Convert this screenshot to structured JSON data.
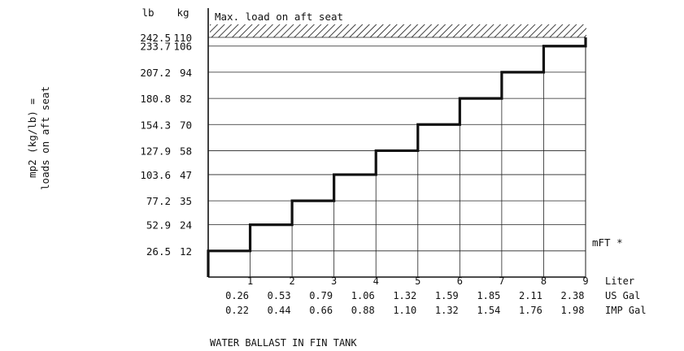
{
  "chart_data": {
    "type": "step",
    "title": "",
    "max_load_label": "Max. load on aft seat",
    "ylabel_line1": "mp2 (kg/lb) =",
    "ylabel_line2": "loads on aft seat",
    "unit_lb": "lb",
    "unit_kg": "kg",
    "y_ticks": [
      {
        "lb": "26.5",
        "kg": "12",
        "value": 12
      },
      {
        "lb": "52.9",
        "kg": "24",
        "value": 24
      },
      {
        "lb": "77.2",
        "kg": "35",
        "value": 35
      },
      {
        "lb": "103.6",
        "kg": "47",
        "value": 47
      },
      {
        "lb": "127.9",
        "kg": "58",
        "value": 58
      },
      {
        "lb": "154.3",
        "kg": "70",
        "value": 70
      },
      {
        "lb": "180.8",
        "kg": "82",
        "value": 82
      },
      {
        "lb": "207.2",
        "kg": "94",
        "value": 94
      },
      {
        "lb": "233.7",
        "kg": "106",
        "value": 106
      },
      {
        "lb": "242.5",
        "kg": "110",
        "value": 110
      }
    ],
    "x_liter": [
      "1",
      "2",
      "3",
      "4",
      "5",
      "6",
      "7",
      "8",
      "9"
    ],
    "x_usgal": [
      "0.26",
      "0.53",
      "0.79",
      "1.06",
      "1.32",
      "1.59",
      "1.85",
      "2.11",
      "2.38"
    ],
    "x_impgal": [
      "0.22",
      "0.44",
      "0.66",
      "0.88",
      "1.10",
      "1.32",
      "1.54",
      "1.76",
      "1.98"
    ],
    "unit_liter": "Liter",
    "unit_usgal": "US Gal",
    "unit_impgal": "IMP Gal",
    "xlabel": "WATER BALLAST IN FIN TANK",
    "series_label": "mFT *",
    "step_x": [
      0,
      1,
      2,
      3,
      4,
      5,
      6,
      7,
      8,
      9
    ],
    "step_y": [
      12,
      24,
      35,
      47,
      58,
      70,
      82,
      94,
      106,
      110
    ],
    "ylim": [
      0,
      110
    ],
    "xlim": [
      0,
      9
    ]
  }
}
